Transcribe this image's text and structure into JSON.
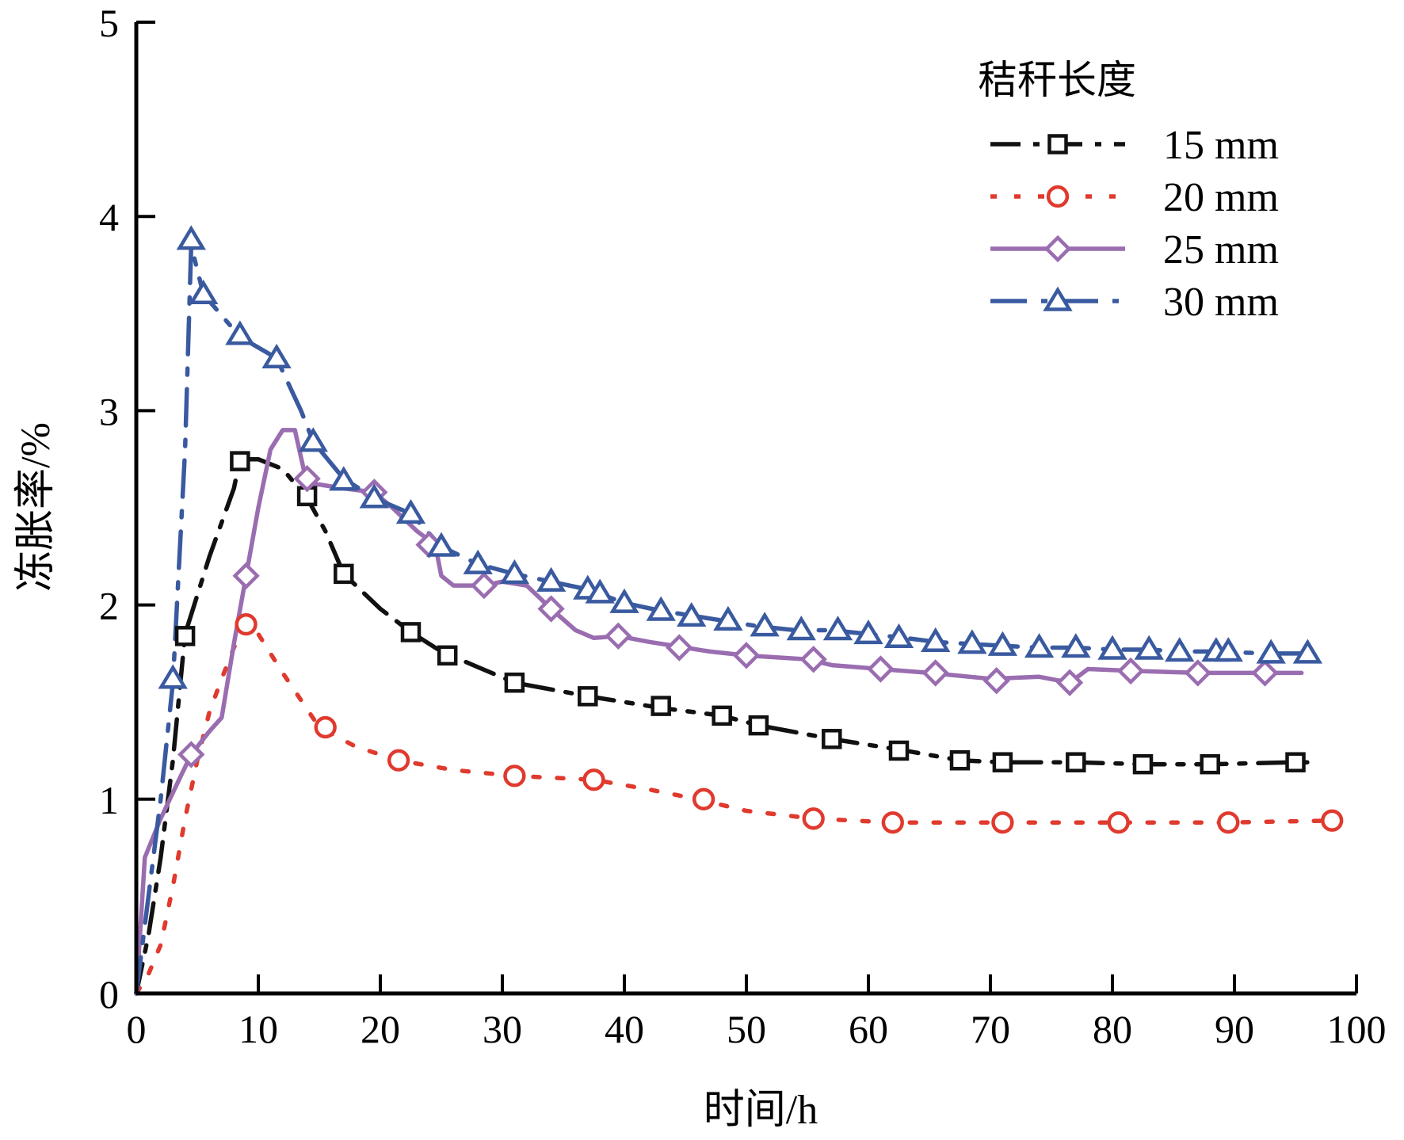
{
  "chart_data": {
    "type": "line",
    "xlabel": "时间/h",
    "ylabel": "冻胀率/%",
    "xlim": [
      0,
      100
    ],
    "ylim": [
      0,
      5
    ],
    "xticks": [
      "0",
      "10",
      "20",
      "30",
      "40",
      "50",
      "60",
      "70",
      "80",
      "90",
      "100"
    ],
    "yticks": [
      "0",
      "1",
      "2",
      "3",
      "4",
      "5"
    ],
    "grid": false,
    "legend": {
      "title": "秸秆长度",
      "position": "top-right"
    },
    "series": [
      {
        "name": "15 mm",
        "color": "#111111",
        "marker": "square",
        "line_style": "dash-dot",
        "line": [
          [
            0,
            0
          ],
          [
            1,
            0.3
          ],
          [
            2,
            0.7
          ],
          [
            3,
            1.2
          ],
          [
            4,
            1.85
          ],
          [
            6,
            2.25
          ],
          [
            8,
            2.6
          ],
          [
            8.5,
            2.75
          ],
          [
            10,
            2.75
          ],
          [
            12,
            2.7
          ],
          [
            14,
            2.55
          ],
          [
            15.5,
            2.38
          ],
          [
            17,
            2.16
          ],
          [
            20,
            1.98
          ],
          [
            22.5,
            1.86
          ],
          [
            25,
            1.76
          ],
          [
            28,
            1.68
          ],
          [
            31,
            1.6
          ],
          [
            37,
            1.53
          ],
          [
            43,
            1.47
          ],
          [
            48,
            1.43
          ],
          [
            51,
            1.38
          ],
          [
            57,
            1.31
          ],
          [
            63,
            1.25
          ],
          [
            67.5,
            1.2
          ],
          [
            71,
            1.19
          ],
          [
            77,
            1.19
          ],
          [
            82.5,
            1.18
          ],
          [
            88,
            1.18
          ],
          [
            95,
            1.19
          ],
          [
            96.5,
            1.19
          ]
        ],
        "markers": [
          [
            4,
            1.84
          ],
          [
            8.5,
            2.74
          ],
          [
            14,
            2.56
          ],
          [
            17,
            2.16
          ],
          [
            22.5,
            1.86
          ],
          [
            25.5,
            1.74
          ],
          [
            31,
            1.6
          ],
          [
            37,
            1.53
          ],
          [
            43,
            1.48
          ],
          [
            48,
            1.43
          ],
          [
            51,
            1.38
          ],
          [
            57,
            1.31
          ],
          [
            62.5,
            1.25
          ],
          [
            67.5,
            1.2
          ],
          [
            71,
            1.19
          ],
          [
            77,
            1.19
          ],
          [
            82.5,
            1.18
          ],
          [
            88,
            1.18
          ],
          [
            95,
            1.19
          ]
        ]
      },
      {
        "name": "20 mm",
        "color": "#e03a2e",
        "marker": "circle",
        "line_style": "dotted",
        "line": [
          [
            0,
            0
          ],
          [
            1,
            0.1
          ],
          [
            2,
            0.25
          ],
          [
            3,
            0.55
          ],
          [
            4,
            0.9
          ],
          [
            5,
            1.2
          ],
          [
            6,
            1.45
          ],
          [
            7,
            1.62
          ],
          [
            8,
            1.78
          ],
          [
            9,
            1.9
          ],
          [
            10,
            1.85
          ],
          [
            12,
            1.65
          ],
          [
            15,
            1.37
          ],
          [
            18,
            1.27
          ],
          [
            21.5,
            1.2
          ],
          [
            26,
            1.15
          ],
          [
            31,
            1.12
          ],
          [
            37.5,
            1.1
          ],
          [
            42,
            1.05
          ],
          [
            46,
            1.0
          ],
          [
            50,
            0.94
          ],
          [
            55.5,
            0.9
          ],
          [
            62,
            0.88
          ],
          [
            71,
            0.88
          ],
          [
            80.5,
            0.88
          ],
          [
            89.5,
            0.88
          ],
          [
            98,
            0.89
          ]
        ],
        "markers": [
          [
            9,
            1.9
          ],
          [
            15.5,
            1.37
          ],
          [
            21.5,
            1.2
          ],
          [
            31,
            1.12
          ],
          [
            37.5,
            1.1
          ],
          [
            46.5,
            1.0
          ],
          [
            55.5,
            0.9
          ],
          [
            62,
            0.88
          ],
          [
            71,
            0.88
          ],
          [
            80.5,
            0.88
          ],
          [
            89.5,
            0.88
          ],
          [
            98,
            0.89
          ]
        ]
      },
      {
        "name": "25 mm",
        "color": "#9a6db0",
        "marker": "diamond",
        "line_style": "solid",
        "line": [
          [
            0,
            0
          ],
          [
            0.7,
            0.7
          ],
          [
            2,
            0.9
          ],
          [
            3.5,
            1.1
          ],
          [
            4.5,
            1.23
          ],
          [
            6,
            1.35
          ],
          [
            7,
            1.42
          ],
          [
            8,
            1.8
          ],
          [
            9,
            2.15
          ],
          [
            10,
            2.5
          ],
          [
            11,
            2.8
          ],
          [
            12,
            2.9
          ],
          [
            13,
            2.9
          ],
          [
            14,
            2.62
          ],
          [
            15,
            2.62
          ],
          [
            17,
            2.6
          ],
          [
            19.5,
            2.58
          ],
          [
            21,
            2.5
          ],
          [
            23,
            2.38
          ],
          [
            24.5,
            2.31
          ],
          [
            25,
            2.15
          ],
          [
            26,
            2.1
          ],
          [
            27.5,
            2.1
          ],
          [
            28.5,
            2.1
          ],
          [
            30,
            2.12
          ],
          [
            32,
            2.1
          ],
          [
            34,
            1.98
          ],
          [
            36,
            1.87
          ],
          [
            37.5,
            1.83
          ],
          [
            39.5,
            1.84
          ],
          [
            42,
            1.81
          ],
          [
            45,
            1.78
          ],
          [
            47,
            1.76
          ],
          [
            50,
            1.74
          ],
          [
            55,
            1.72
          ],
          [
            57,
            1.69
          ],
          [
            61,
            1.67
          ],
          [
            65,
            1.65
          ],
          [
            70,
            1.62
          ],
          [
            74,
            1.63
          ],
          [
            76.5,
            1.6
          ],
          [
            78,
            1.67
          ],
          [
            82,
            1.66
          ],
          [
            87,
            1.65
          ],
          [
            92,
            1.65
          ],
          [
            95.5,
            1.65
          ]
        ],
        "markers": [
          [
            4.5,
            1.23
          ],
          [
            9,
            2.15
          ],
          [
            14,
            2.65
          ],
          [
            19.5,
            2.58
          ],
          [
            24,
            2.31
          ],
          [
            28.5,
            2.1
          ],
          [
            34,
            1.98
          ],
          [
            39.5,
            1.84
          ],
          [
            44.5,
            1.78
          ],
          [
            50,
            1.74
          ],
          [
            55.5,
            1.72
          ],
          [
            61,
            1.67
          ],
          [
            65.5,
            1.65
          ],
          [
            70.5,
            1.61
          ],
          [
            76.5,
            1.6
          ],
          [
            81.5,
            1.66
          ],
          [
            87,
            1.65
          ],
          [
            92.5,
            1.65
          ]
        ]
      },
      {
        "name": "30 mm",
        "color": "#3a5aa0",
        "marker": "triangle",
        "line_style": "long-dash-dot",
        "line": [
          [
            0,
            0
          ],
          [
            1,
            0.5
          ],
          [
            2,
            1.0
          ],
          [
            3,
            1.6
          ],
          [
            4,
            2.8
          ],
          [
            4.5,
            3.85
          ],
          [
            5.5,
            3.6
          ],
          [
            8.5,
            3.38
          ],
          [
            11.5,
            3.27
          ],
          [
            13.5,
            3.0
          ],
          [
            14.5,
            2.84
          ],
          [
            17,
            2.65
          ],
          [
            19.5,
            2.55
          ],
          [
            22.5,
            2.47
          ],
          [
            25,
            2.3
          ],
          [
            28,
            2.21
          ],
          [
            31,
            2.16
          ],
          [
            34,
            2.12
          ],
          [
            37,
            2.08
          ],
          [
            40,
            2.01
          ],
          [
            43,
            1.97
          ],
          [
            46,
            1.94
          ],
          [
            48,
            1.92
          ],
          [
            51,
            1.89
          ],
          [
            54,
            1.87
          ],
          [
            57,
            1.87
          ],
          [
            60,
            1.85
          ],
          [
            63,
            1.83
          ],
          [
            65.5,
            1.81
          ],
          [
            68,
            1.8
          ],
          [
            71,
            1.79
          ],
          [
            74,
            1.78
          ],
          [
            77,
            1.78
          ],
          [
            80,
            1.77
          ],
          [
            83,
            1.77
          ],
          [
            85.5,
            1.76
          ],
          [
            88,
            1.76
          ],
          [
            93,
            1.75
          ],
          [
            96.5,
            1.75
          ]
        ],
        "markers": [
          [
            3,
            1.62
          ],
          [
            4.5,
            3.88
          ],
          [
            5.5,
            3.6
          ],
          [
            8.5,
            3.39
          ],
          [
            11.5,
            3.27
          ],
          [
            14.5,
            2.84
          ],
          [
            17,
            2.64
          ],
          [
            19.5,
            2.55
          ],
          [
            22.5,
            2.47
          ],
          [
            25,
            2.3
          ],
          [
            28,
            2.21
          ],
          [
            31,
            2.16
          ],
          [
            34,
            2.12
          ],
          [
            37,
            2.08
          ],
          [
            38,
            2.06
          ],
          [
            40,
            2.01
          ],
          [
            43,
            1.97
          ],
          [
            45.5,
            1.94
          ],
          [
            48.5,
            1.92
          ],
          [
            51.5,
            1.89
          ],
          [
            54.5,
            1.87
          ],
          [
            57.5,
            1.87
          ],
          [
            60,
            1.85
          ],
          [
            62.5,
            1.83
          ],
          [
            65.5,
            1.81
          ],
          [
            68.5,
            1.8
          ],
          [
            71,
            1.79
          ],
          [
            74,
            1.78
          ],
          [
            77,
            1.78
          ],
          [
            80,
            1.77
          ],
          [
            83,
            1.77
          ],
          [
            85.5,
            1.76
          ],
          [
            88.5,
            1.76
          ],
          [
            89.5,
            1.76
          ],
          [
            93,
            1.75
          ],
          [
            96,
            1.75
          ]
        ]
      }
    ]
  }
}
